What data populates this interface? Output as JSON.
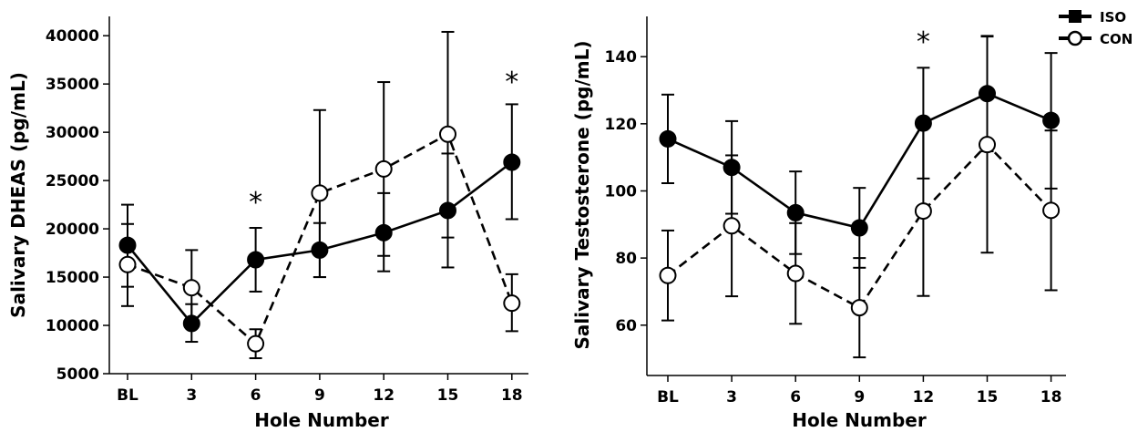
{
  "legend": {
    "entries": [
      {
        "label": "ISO",
        "marker": "filled-circle",
        "line": "solid"
      },
      {
        "label": "CON",
        "marker": "open-circle",
        "line": "dashed"
      }
    ]
  },
  "chart_data": [
    {
      "type": "line",
      "xlabel": "Hole Number",
      "ylabel": "Salivary DHEAS (pg/mL)",
      "categories": [
        "BL",
        "3",
        "6",
        "9",
        "12",
        "15",
        "18"
      ],
      "ylim": [
        5000,
        42000
      ],
      "yticks": [
        5000,
        10000,
        15000,
        20000,
        25000,
        30000,
        35000,
        40000
      ],
      "significance": [
        "",
        "",
        "*",
        "",
        "",
        "",
        "*"
      ],
      "series": [
        {
          "name": "ISO",
          "values": [
            18300,
            10200,
            16800,
            17800,
            19600,
            21900,
            26900
          ],
          "err_low": [
            14000,
            8300,
            13500,
            15000,
            15600,
            16000,
            21000
          ],
          "err_high": [
            22500,
            12200,
            20100,
            20600,
            23700,
            27800,
            32900
          ],
          "color": "#000000"
        },
        {
          "name": "CON",
          "values": [
            16300,
            13900,
            8100,
            23700,
            26200,
            29800,
            12300
          ],
          "err_low": [
            12000,
            10100,
            6600,
            15000,
            17200,
            19100,
            9400
          ],
          "err_high": [
            20500,
            17800,
            9600,
            32300,
            35200,
            40400,
            15300
          ],
          "color": "#000000"
        }
      ]
    },
    {
      "type": "line",
      "xlabel": "Hole Number",
      "ylabel": "Salivary Testosterone (pg/mL)",
      "categories": [
        "BL",
        "3",
        "6",
        "9",
        "12",
        "15",
        "18"
      ],
      "ylim": [
        45,
        152
      ],
      "yticks": [
        60,
        80,
        100,
        120,
        140
      ],
      "significance": [
        "",
        "",
        "",
        "",
        "*",
        "",
        ""
      ],
      "series": [
        {
          "name": "ISO",
          "values": [
            115.5,
            107,
            93.5,
            89,
            120.2,
            129,
            121
          ],
          "err_low": [
            102.3,
            93.2,
            81.2,
            77.1,
            103.7,
            111.8,
            100.7
          ],
          "err_high": [
            128.7,
            120.8,
            105.8,
            100.9,
            136.7,
            146.2,
            141.1
          ],
          "color": "#000000"
        },
        {
          "name": "CON",
          "values": [
            74.8,
            89.6,
            75.4,
            65.2,
            94,
            113.8,
            94.2
          ],
          "err_low": [
            61.4,
            68.6,
            60.4,
            50.4,
            68.7,
            81.6,
            70.4
          ],
          "err_high": [
            88.2,
            110.6,
            90.4,
            80,
            119.3,
            146,
            118
          ]
        }
      ]
    }
  ]
}
